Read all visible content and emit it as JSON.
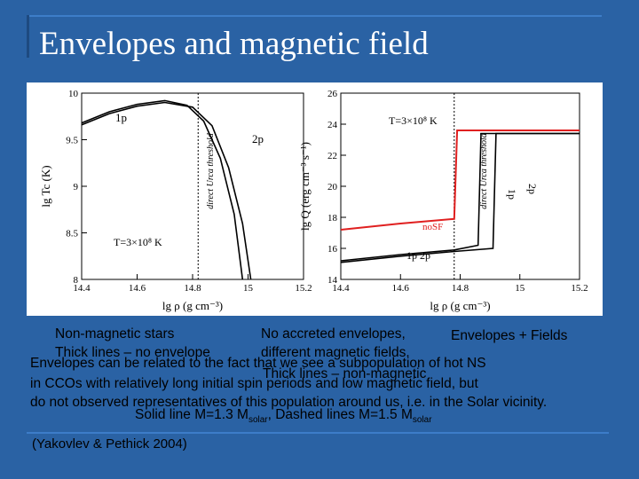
{
  "slide": {
    "title": "Envelopes and magnetic field",
    "captions": {
      "left_top": "Non-magnetic stars",
      "left_bottom": "Thick lines – no envelope",
      "mid_top": "No accreted envelopes,",
      "mid_bottom": "different magnetic fields.",
      "right_top": "Envelopes + Fields",
      "right_bottom": "Thick lines – non-magnetic",
      "body_line1": "Envelopes can be related to the fact that we see a subpopulation of hot NS",
      "body_line2": "in CCOs with relatively long initial spin periods and low magnetic field, but",
      "body_line3": "do not observed representatives of this population around us, i.e. in the Solar vicinity.",
      "solid_prefix": "Solid line M=1.3 M",
      "solid_sub": "solar",
      "dashed_prefix": ", Dashed lines M=1.5 M",
      "dashed_sub": "solar"
    },
    "credit": "(Yakovlev & Pethick 2004)"
  },
  "chart_data": [
    {
      "type": "line",
      "xlabel": "lg ρ (g cm⁻³)",
      "ylabel": "lg Tc (K)",
      "xlim": [
        14.4,
        15.2
      ],
      "ylim": [
        8.0,
        10.0
      ],
      "x_ticks": [
        "14.4",
        "14.6",
        "14.8",
        "15",
        "15.2"
      ],
      "y_ticks": [
        "8",
        "8.5",
        "9",
        "9.5",
        "10"
      ],
      "annotations": [
        "1p",
        "2p",
        "direct Urca threshold",
        "T=3×10⁸ K"
      ],
      "series": [
        {
          "name": "1p",
          "x": [
            14.4,
            14.5,
            14.6,
            14.7,
            14.78,
            14.84,
            14.9,
            14.95,
            14.98
          ],
          "y": [
            9.68,
            9.8,
            9.88,
            9.92,
            9.87,
            9.7,
            9.3,
            8.7,
            8.0
          ]
        },
        {
          "name": "2p",
          "x": [
            14.4,
            14.5,
            14.6,
            14.7,
            14.8,
            14.87,
            14.93,
            14.98,
            15.01
          ],
          "y": [
            9.66,
            9.78,
            9.86,
            9.9,
            9.85,
            9.65,
            9.2,
            8.6,
            8.0
          ]
        }
      ]
    },
    {
      "type": "line",
      "xlabel": "lg ρ (g cm⁻³)",
      "ylabel": "lg Q (erg cm⁻³ s⁻¹)",
      "xlim": [
        14.4,
        15.2
      ],
      "ylim": [
        14,
        26
      ],
      "x_ticks": [
        "14.4",
        "14.6",
        "14.8",
        "15",
        "15.2"
      ],
      "y_ticks": [
        "14",
        "16",
        "18",
        "20",
        "22",
        "24",
        "26"
      ],
      "annotations": [
        "T=3×10⁸ K",
        "direct Urca threshold",
        "noSF",
        "1p",
        "2p",
        "1p 2p"
      ],
      "series": [
        {
          "name": "noSF",
          "x": [
            14.4,
            14.6,
            14.78,
            14.79,
            15.2
          ],
          "y": [
            17.2,
            17.6,
            17.9,
            23.6,
            23.6
          ]
        },
        {
          "name": "1p",
          "x": [
            14.4,
            14.6,
            14.78,
            14.86,
            14.87,
            15.2
          ],
          "y": [
            15.2,
            15.6,
            15.9,
            16.2,
            23.4,
            23.4
          ]
        },
        {
          "name": "2p",
          "x": [
            14.4,
            14.6,
            14.78,
            14.91,
            14.92,
            15.2
          ],
          "y": [
            15.1,
            15.5,
            15.8,
            16.0,
            23.4,
            23.4
          ]
        }
      ]
    }
  ]
}
